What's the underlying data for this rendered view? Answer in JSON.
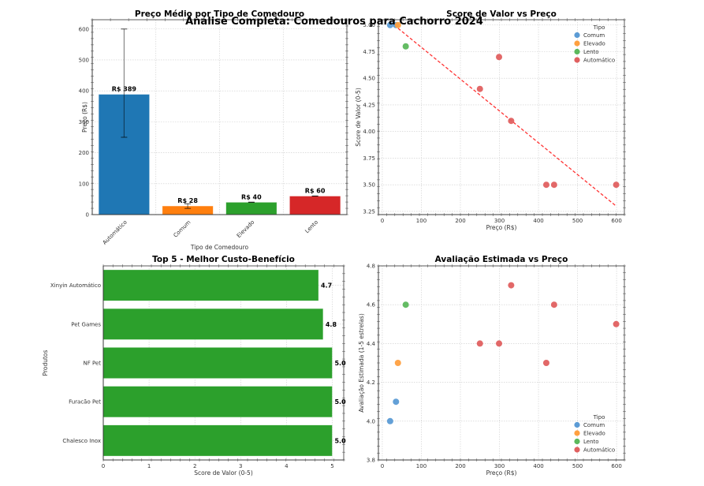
{
  "suptitle": "Análise Completa: Comedouros para Cachorro 2024",
  "colors": {
    "Automático": "#1f77b4",
    "Comum": "#ff7f0e",
    "Elevado": "#2ca02c",
    "Lento": "#d62728",
    "scatter_Comum": "#5b9bd5",
    "scatter_Elevado": "#ffa040",
    "scatter_Lento": "#5cb85c",
    "scatter_Automático": "#e06060",
    "hbar": "#2ca02c",
    "trend": "#ff3333"
  },
  "chart_data": [
    {
      "id": "price-by-type",
      "type": "bar",
      "title": "Preço Médio por Tipo de Comedouro",
      "xlabel": "Tipo de Comedouro",
      "ylabel": "Preço (R$)",
      "categories": [
        "Automático",
        "Comum",
        "Elevado",
        "Lento"
      ],
      "values": [
        389,
        28,
        40,
        60
      ],
      "error_low": [
        250,
        20,
        40,
        60
      ],
      "error_high": [
        600,
        35,
        40,
        60
      ],
      "data_labels": [
        "R$ 389",
        "R$ 28",
        "R$ 40",
        "R$ 60"
      ],
      "ylim": [
        0,
        630
      ],
      "yticks": [
        0,
        100,
        200,
        300,
        400,
        500,
        600
      ],
      "grid": true
    },
    {
      "id": "value-vs-price",
      "type": "scatter",
      "title": "Score de Valor vs Preço",
      "xlabel": "Preço (R$)",
      "ylabel": "Score de Valor (0-5)",
      "xlim": [
        -10,
        620
      ],
      "ylim": [
        3.22,
        5.05
      ],
      "xticks": [
        0,
        100,
        200,
        300,
        400,
        500,
        600
      ],
      "yticks": [
        3.25,
        3.5,
        3.75,
        4.0,
        4.25,
        4.5,
        4.75,
        5.0
      ],
      "ytick_labels": [
        "3.25",
        "3.50",
        "3.75",
        "4.00",
        "4.25",
        "4.50",
        "4.75",
        "5.00"
      ],
      "legend": {
        "title": "Tipo",
        "position": "top-right",
        "entries": [
          "Comum",
          "Elevado",
          "Lento",
          "Automático"
        ]
      },
      "series": [
        {
          "name": "Comum",
          "points": [
            [
              20,
              5.0
            ],
            [
              35,
              5.0
            ]
          ]
        },
        {
          "name": "Elevado",
          "points": [
            [
              40,
              5.0
            ]
          ]
        },
        {
          "name": "Lento",
          "points": [
            [
              60,
              4.8
            ]
          ]
        },
        {
          "name": "Automático",
          "points": [
            [
              250,
              4.4
            ],
            [
              299,
              4.7
            ],
            [
              330,
              4.1
            ],
            [
              420,
              3.5
            ],
            [
              440,
              3.5
            ],
            [
              599,
              3.5
            ]
          ]
        }
      ],
      "trendline": {
        "x": [
          20,
          599
        ],
        "y": [
          5.03,
          3.3
        ],
        "style": "dashed"
      },
      "grid": true
    },
    {
      "id": "top5-value",
      "type": "bar",
      "orientation": "horizontal",
      "title": "Top 5 - Melhor Custo-Benefício",
      "xlabel": "Score de Valor (0-5)",
      "ylabel": "Produtos",
      "categories": [
        "Xinyin Automático",
        "Pet Games",
        "NF Pet",
        "Furacão Pet",
        "Chalesco Inox"
      ],
      "values": [
        4.7,
        4.8,
        5.0,
        5.0,
        5.0
      ],
      "data_labels": [
        "4.7",
        "4.8",
        "5.0",
        "5.0",
        "5.0"
      ],
      "xlim": [
        0,
        5.25
      ],
      "xticks": [
        0,
        1,
        2,
        3,
        4,
        5
      ],
      "grid": true
    },
    {
      "id": "rating-vs-price",
      "type": "scatter",
      "title": "Avaliação Estimada vs Preço",
      "xlabel": "Preço (R$)",
      "ylabel": "Avaliação Estimada (1-5 estrelas)",
      "xlim": [
        -10,
        620
      ],
      "ylim": [
        3.8,
        4.8
      ],
      "xticks": [
        0,
        100,
        200,
        300,
        400,
        500,
        600
      ],
      "yticks": [
        3.8,
        4.0,
        4.2,
        4.4,
        4.6,
        4.8
      ],
      "legend": {
        "title": "Tipo",
        "position": "bottom-right",
        "entries": [
          "Comum",
          "Elevado",
          "Lento",
          "Automático"
        ]
      },
      "series": [
        {
          "name": "Comum",
          "points": [
            [
              20,
              4.0
            ],
            [
              35,
              4.1
            ]
          ]
        },
        {
          "name": "Elevado",
          "points": [
            [
              40,
              4.3
            ]
          ]
        },
        {
          "name": "Lento",
          "points": [
            [
              60,
              4.6
            ]
          ]
        },
        {
          "name": "Automático",
          "points": [
            [
              250,
              4.4
            ],
            [
              299,
              4.4
            ],
            [
              330,
              4.7
            ],
            [
              420,
              4.3
            ],
            [
              440,
              4.6
            ],
            [
              599,
              4.5
            ]
          ]
        }
      ],
      "grid": true
    }
  ]
}
